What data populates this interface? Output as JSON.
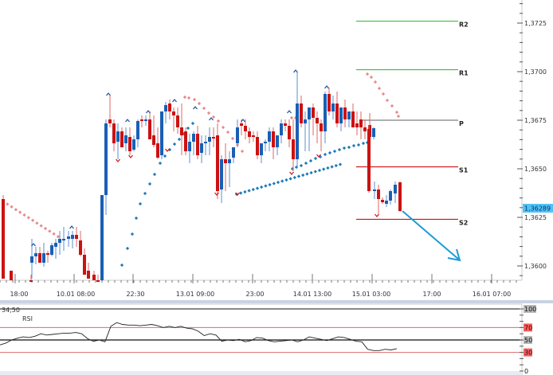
{
  "chart_data": {
    "type": "candlestick",
    "title": "",
    "instrument_price_scale": "1,3600 – 1,3735",
    "current_price": "1,36289",
    "current_price_color": "#4fc3f7",
    "colors": {
      "bull": "#1a5fb4",
      "bear": "#cc1111",
      "psar_bull": "#1f7ab8",
      "psar_bear": "#e88a8a",
      "resistance": "#3cbf3c",
      "support": "#cc1111",
      "pivot": "#808080",
      "arrow": "#1e9ad6"
    },
    "y_axis": {
      "ticks": [
        "1,3725",
        "1,3700",
        "1,3675",
        "1,3650",
        "1,3625",
        "1,3600"
      ],
      "ylim": [
        1.3595,
        1.3735
      ]
    },
    "x_axis": {
      "ticks": [
        "18:00",
        "10.01 08:00",
        "22:30",
        "13.01 09:00",
        "23:00",
        "14.01 13:00",
        "15.01 03:00",
        "17:00",
        "16.01 07:00"
      ]
    },
    "pivot_levels": [
      {
        "name": "R2",
        "value": 1.3726
      },
      {
        "name": "R1",
        "value": 1.3701
      },
      {
        "name": "P",
        "value": 1.3675
      },
      {
        "name": "S1",
        "value": 1.3651
      },
      {
        "name": "S2",
        "value": 1.3624
      }
    ],
    "forecast_arrow": {
      "from": [
        505,
        265
      ],
      "to": [
        577,
        327
      ],
      "direction": "down"
    },
    "rsi": {
      "label": "RSI",
      "value_label": "34,50",
      "levels": [
        "100",
        "70",
        "50",
        "30",
        "0"
      ],
      "highlight_levels": [
        "70",
        "30"
      ],
      "values": [
        42,
        45,
        50,
        53,
        55,
        54,
        56,
        60,
        58,
        59,
        60,
        61,
        61,
        62,
        60,
        52,
        48,
        50,
        47,
        72,
        78,
        75,
        74,
        74,
        73,
        74,
        75,
        73,
        70,
        72,
        70,
        72,
        69,
        68,
        64,
        57,
        60,
        58,
        48,
        50,
        49,
        51,
        47,
        49,
        54,
        53,
        49,
        47,
        48,
        49,
        50,
        47,
        50,
        55,
        53,
        51,
        49,
        52,
        55,
        54,
        51,
        48,
        47,
        35,
        33,
        33,
        35,
        34,
        36
      ]
    }
  },
  "labels": {
    "rsi_title": "RSI",
    "rsi_value": "34,50",
    "current_price": "1,36289"
  }
}
